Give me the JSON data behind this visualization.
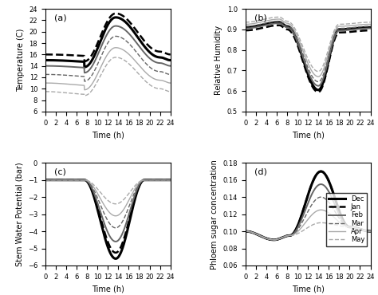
{
  "months": [
    "Dec",
    "Jan",
    "Feb",
    "Mar",
    "Apr",
    "May"
  ],
  "line_styles": [
    {
      "color": "black",
      "lw": 2.2,
      "ls": "-",
      "label": "Dec"
    },
    {
      "color": "black",
      "lw": 1.8,
      "ls": "--",
      "label": "Jan"
    },
    {
      "color": "#666666",
      "lw": 1.4,
      "ls": "-",
      "label": "Feb"
    },
    {
      "color": "#666666",
      "lw": 1.0,
      "ls": "--",
      "label": "Mar"
    },
    {
      "color": "#aaaaaa",
      "lw": 1.0,
      "ls": "-",
      "label": "Apr"
    },
    {
      "color": "#aaaaaa",
      "lw": 1.0,
      "ls": "--",
      "label": "May"
    }
  ],
  "temp": {
    "ylim": [
      6,
      24
    ],
    "yticks": [
      6,
      8,
      10,
      12,
      14,
      16,
      18,
      20,
      22,
      24
    ],
    "ylabel": "Temperature (C)",
    "label": "(a)",
    "t0_val": [
      15.0,
      16.0,
      14.0,
      12.5,
      11.0,
      9.5
    ],
    "t6_val": [
      14.5,
      15.5,
      13.5,
      12.0,
      10.5,
      9.0
    ],
    "tmin_val": [
      13.5,
      14.5,
      12.5,
      11.0,
      9.5,
      8.5
    ],
    "tmin_t": [
      6.5,
      6.5,
      6.5,
      6.5,
      6.5,
      6.5
    ],
    "tmax_val": [
      22.5,
      23.2,
      21.0,
      19.2,
      17.2,
      15.5
    ],
    "tmax_t": [
      13.5,
      13.5,
      13.5,
      13.5,
      13.5,
      13.5
    ],
    "t24_val": [
      15.0,
      16.0,
      14.0,
      12.5,
      11.0,
      9.5
    ]
  },
  "rh": {
    "ylim": [
      0.5,
      1.0
    ],
    "yticks": [
      0.5,
      0.6,
      0.7,
      0.8,
      0.9,
      1.0
    ],
    "ylabel": "Relative Humidity",
    "label": "(b)",
    "t0_val": [
      0.91,
      0.895,
      0.905,
      0.915,
      0.925,
      0.935
    ],
    "tpeak_val": [
      0.935,
      0.92,
      0.93,
      0.94,
      0.95,
      0.96
    ],
    "tpeak_t": [
      6.5,
      6.5,
      6.5,
      6.5,
      6.5,
      6.5
    ],
    "tmin_val": [
      0.605,
      0.595,
      0.625,
      0.645,
      0.67,
      0.695
    ],
    "tmin_t": [
      14.0,
      14.0,
      14.0,
      14.0,
      14.0,
      14.0
    ],
    "t24_val": [
      0.91,
      0.895,
      0.905,
      0.915,
      0.925,
      0.935
    ]
  },
  "swp": {
    "ylim": [
      -6,
      0
    ],
    "yticks": [
      -6,
      -5,
      -4,
      -3,
      -2,
      -1,
      0
    ],
    "ylabel": "Stem Water Potential (bar)",
    "label": "(c)",
    "night_val": -1.0,
    "tstart_drop": 7.5,
    "tend_rise": 19.0,
    "tmin_t": 13.5,
    "day_min": [
      -5.6,
      -5.25,
      -4.6,
      -3.8,
      -3.1,
      -2.4
    ]
  },
  "psc": {
    "ylim": [
      0.06,
      0.18
    ],
    "yticks": [
      0.06,
      0.08,
      0.1,
      0.12,
      0.14,
      0.16,
      0.18
    ],
    "ylabel": "Phloem sugar concentration",
    "label": "(d)",
    "t0_val": 0.1,
    "tmin_val": 0.09,
    "tmin_t": 5.5,
    "trise_t": 8.5,
    "tmax_val": [
      0.17,
      0.17,
      0.155,
      0.14,
      0.125,
      0.11
    ],
    "tmax_t": 14.5,
    "t24_val": 0.1
  }
}
